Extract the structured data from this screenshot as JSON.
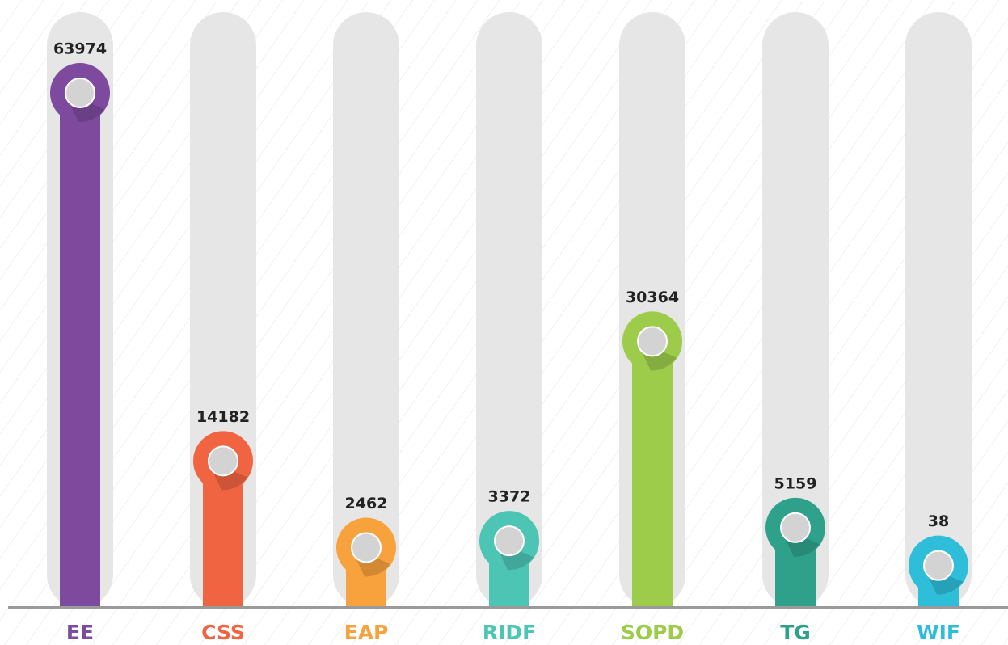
{
  "chart_data": {
    "type": "bar",
    "categories": [
      "EE",
      "CSS",
      "EAP",
      "RIDF",
      "SOPD",
      "TG",
      "WIF"
    ],
    "values": [
      63974,
      14182,
      2462,
      3372,
      30364,
      5159,
      38
    ],
    "colors": [
      "#7d4a9d",
      "#f06441",
      "#f8a23d",
      "#4cc5b5",
      "#9dcb4a",
      "#2fa18b",
      "#2ebed9"
    ]
  }
}
